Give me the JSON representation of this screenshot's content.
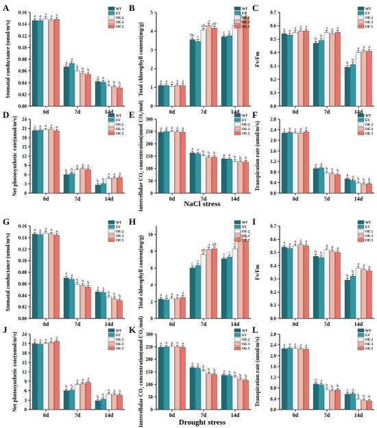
{
  "figure": {
    "section_labels": [
      "NaCl stress",
      "Drought stress"
    ],
    "colors": {
      "WT": "#1a6a78",
      "EV": "#2a9aa8",
      "OE-2": "#f4f4f4",
      "OE-3": "#f2b7a8",
      "OE-5": "#ee7468"
    }
  },
  "legend": [
    "WT",
    "EV",
    "OE-2",
    "OE-3",
    "OE-5"
  ],
  "chart_data": [
    {
      "panel": "A",
      "type": "bar",
      "ylabel": "Stomatal conductance (umol/m²s)",
      "categories": [
        "0d",
        "7d",
        "14d"
      ],
      "ylim": [
        0,
        0.16
      ],
      "yticks": [
        "0.00",
        "0.02",
        "0.04",
        "0.06",
        "0.08",
        "0.10",
        "0.12",
        "0.14",
        "0.16"
      ],
      "series": [
        {
          "name": "WT",
          "values": [
            0.146,
            0.067,
            0.042
          ]
        },
        {
          "name": "EV",
          "values": [
            0.146,
            0.073,
            0.041
          ]
        },
        {
          "name": "OE-2",
          "values": [
            0.149,
            0.06,
            0.034
          ]
        },
        {
          "name": "OE-3",
          "values": [
            0.146,
            0.056,
            0.033
          ]
        },
        {
          "name": "OE-5",
          "values": [
            0.148,
            0.054,
            0.031
          ]
        }
      ],
      "letters": [
        [
          "a",
          "a",
          "a",
          "a",
          "a"
        ],
        [
          "a",
          "a",
          "b",
          "b",
          "b"
        ],
        [
          "a",
          "a",
          "b",
          "b",
          "b"
        ]
      ]
    },
    {
      "panel": "B",
      "type": "bar",
      "ylabel": "Total chlorophyll content(mg/g)",
      "categories": [
        "0d",
        "7d",
        "14d"
      ],
      "ylim": [
        0,
        5
      ],
      "yticks": [
        "0",
        "1",
        "2",
        "3",
        "4",
        "5"
      ],
      "series": [
        {
          "name": "WT",
          "values": [
            1.1,
            3.55,
            3.7
          ]
        },
        {
          "name": "EV",
          "values": [
            1.1,
            3.45,
            3.75
          ]
        },
        {
          "name": "OE-2",
          "values": [
            1.05,
            4.05,
            4.3
          ]
        },
        {
          "name": "OE-3",
          "values": [
            1.12,
            4.3,
            4.55
          ]
        },
        {
          "name": "OE-5",
          "values": [
            1.08,
            4.15,
            4.75
          ]
        }
      ],
      "letters": [
        [
          "a",
          "a",
          "a",
          "a",
          "a"
        ],
        [
          "bc",
          "c",
          "ab",
          "a",
          "ab"
        ],
        [
          "c",
          "c",
          "b",
          "ab",
          "a"
        ]
      ]
    },
    {
      "panel": "C",
      "type": "bar",
      "ylabel": "Fv/Fm",
      "categories": [
        "0d",
        "7d",
        "14d"
      ],
      "ylim": [
        0,
        0.7
      ],
      "yticks": [
        "0.0",
        "0.1",
        "0.2",
        "0.3",
        "0.4",
        "0.5",
        "0.6",
        "0.7"
      ],
      "series": [
        {
          "name": "WT",
          "values": [
            0.54,
            0.47,
            0.29
          ]
        },
        {
          "name": "EV",
          "values": [
            0.53,
            0.49,
            0.31
          ]
        },
        {
          "name": "OE-2",
          "values": [
            0.55,
            0.55,
            0.4
          ]
        },
        {
          "name": "OE-3",
          "values": [
            0.56,
            0.54,
            0.41
          ]
        },
        {
          "name": "OE-5",
          "values": [
            0.56,
            0.55,
            0.41
          ]
        }
      ],
      "letters": [
        [
          "a",
          "a",
          "a",
          "a",
          "a"
        ],
        [
          "b",
          "b",
          "a",
          "a",
          "a"
        ],
        [
          "b",
          "b",
          "a",
          "a",
          "a"
        ]
      ]
    },
    {
      "panel": "D",
      "type": "bar",
      "ylabel": "Net photosynthetic rate(umol/m²s)",
      "categories": [
        "0d",
        "7d",
        "14d"
      ],
      "ylim": [
        0,
        24
      ],
      "yticks": [
        "0",
        "3",
        "6",
        "9",
        "12",
        "15",
        "18",
        "21",
        "24"
      ],
      "series": [
        {
          "name": "WT",
          "values": [
            20.3,
            6.0,
            2.6
          ]
        },
        {
          "name": "EV",
          "values": [
            20.4,
            6.3,
            3.1
          ]
        },
        {
          "name": "OE-2",
          "values": [
            20.6,
            7.6,
            4.8
          ]
        },
        {
          "name": "OE-3",
          "values": [
            20.7,
            8.0,
            4.9
          ]
        },
        {
          "name": "OE-5",
          "values": [
            20.2,
            7.6,
            5.1
          ]
        }
      ],
      "letters": [
        [
          "a",
          "a",
          "a",
          "a",
          "a"
        ],
        [
          "b",
          "b",
          "a",
          "a",
          "a"
        ],
        [
          "b",
          "b",
          "a",
          "a",
          "a"
        ]
      ]
    },
    {
      "panel": "E",
      "type": "bar",
      "ylabel": "Intercellular CO₂ concentration(umol CO₂/mol)",
      "categories": [
        "0d",
        "7d",
        "14d"
      ],
      "ylim": [
        0,
        300
      ],
      "yticks": [
        "0",
        "50",
        "100",
        "150",
        "200",
        "250",
        "300"
      ],
      "series": [
        {
          "name": "WT",
          "values": [
            247,
            163,
            139
          ]
        },
        {
          "name": "EV",
          "values": [
            250,
            160,
            138
          ]
        },
        {
          "name": "OE-2",
          "values": [
            249,
            151,
            130
          ]
        },
        {
          "name": "OE-3",
          "values": [
            248,
            145,
            128
          ]
        },
        {
          "name": "OE-5",
          "values": [
            247,
            145,
            126
          ]
        }
      ],
      "letters": [
        [
          "a",
          "a",
          "a",
          "a",
          "a"
        ],
        [
          "a",
          "a",
          "b",
          "b",
          "b"
        ],
        [
          "a",
          "a",
          "b",
          "b",
          "b"
        ]
      ]
    },
    {
      "panel": "F",
      "type": "bar",
      "ylabel": "Transpiration rate (umol/m²s)",
      "categories": [
        "0d",
        "7d",
        "14d"
      ],
      "ylim": [
        0,
        2.8
      ],
      "yticks": [
        "0.0",
        "0.4",
        "0.8",
        "1.2",
        "1.6",
        "2.0",
        "2.4",
        "2.8"
      ],
      "series": [
        {
          "name": "WT",
          "values": [
            2.27,
            0.93,
            0.54
          ]
        },
        {
          "name": "EV",
          "values": [
            2.3,
            0.96,
            0.48
          ]
        },
        {
          "name": "OE-2",
          "values": [
            2.27,
            0.77,
            0.38
          ]
        },
        {
          "name": "OE-3",
          "values": [
            2.28,
            0.73,
            0.34
          ]
        },
        {
          "name": "OE-5",
          "values": [
            2.32,
            0.69,
            0.36
          ]
        }
      ],
      "letters": [
        [
          "a",
          "a",
          "a",
          "a",
          "a"
        ],
        [
          "a",
          "a",
          "b",
          "b",
          "b"
        ],
        [
          "a",
          "a",
          "b",
          "b",
          "b"
        ]
      ]
    },
    {
      "panel": "G",
      "type": "bar",
      "ylabel": "Stomatal conductance (umol/m²s)",
      "categories": [
        "0d",
        "7d",
        "14d"
      ],
      "ylim": [
        0,
        0.16
      ],
      "yticks": [
        "0.00",
        "0.02",
        "0.04",
        "0.06",
        "0.08",
        "0.10",
        "0.12",
        "0.14",
        "0.16"
      ],
      "series": [
        {
          "name": "WT",
          "values": [
            0.146,
            0.07,
            0.046
          ]
        },
        {
          "name": "EV",
          "values": [
            0.145,
            0.068,
            0.045
          ]
        },
        {
          "name": "OE-2",
          "values": [
            0.148,
            0.059,
            0.037
          ]
        },
        {
          "name": "OE-3",
          "values": [
            0.146,
            0.057,
            0.034
          ]
        },
        {
          "name": "OE-5",
          "values": [
            0.144,
            0.054,
            0.031
          ]
        }
      ],
      "letters": [
        [
          "a",
          "a",
          "a",
          "a",
          "a"
        ],
        [
          "a",
          "a",
          "b",
          "b",
          "b"
        ],
        [
          "a",
          "a",
          "b",
          "b",
          "b"
        ]
      ]
    },
    {
      "panel": "H",
      "type": "bar",
      "ylabel": "Total chlorophyll content(mg/g)",
      "categories": [
        "0d",
        "7d",
        "14d"
      ],
      "ylim": [
        0,
        11
      ],
      "yticks": [
        "0",
        "2",
        "4",
        "6",
        "8",
        "10"
      ],
      "series": [
        {
          "name": "WT",
          "values": [
            2.3,
            6.0,
            7.1
          ]
        },
        {
          "name": "EV",
          "values": [
            2.2,
            6.3,
            7.3
          ]
        },
        {
          "name": "OE-2",
          "values": [
            2.4,
            7.6,
            8.3
          ]
        },
        {
          "name": "OE-3",
          "values": [
            2.3,
            8.2,
            9.8
          ]
        },
        {
          "name": "OE-5",
          "values": [
            2.5,
            8.3,
            9.2
          ]
        }
      ],
      "letters": [
        [
          "a",
          "a",
          "a",
          "a",
          "a"
        ],
        [
          "c",
          "c",
          "ab",
          "a",
          "ab"
        ],
        [
          "c",
          "c",
          "b",
          "a",
          "a"
        ]
      ]
    },
    {
      "panel": "I",
      "type": "bar",
      "ylabel": "Fv/Fm",
      "categories": [
        "0d",
        "7d",
        "14d"
      ],
      "ylim": [
        0,
        0.7
      ],
      "yticks": [
        "0.0",
        "0.1",
        "0.2",
        "0.3",
        "0.4",
        "0.5",
        "0.6",
        "0.7"
      ],
      "series": [
        {
          "name": "WT",
          "values": [
            0.54,
            0.47,
            0.29
          ]
        },
        {
          "name": "EV",
          "values": [
            0.53,
            0.46,
            0.32
          ]
        },
        {
          "name": "OE-2",
          "values": [
            0.55,
            0.52,
            0.38
          ]
        },
        {
          "name": "OE-3",
          "values": [
            0.56,
            0.51,
            0.37
          ]
        },
        {
          "name": "OE-5",
          "values": [
            0.55,
            0.5,
            0.36
          ]
        }
      ],
      "letters": [
        [
          "a",
          "a",
          "a",
          "a",
          "a"
        ],
        [
          "b",
          "b",
          "a",
          "a",
          "a"
        ],
        [
          "b",
          "b",
          "a",
          "a",
          "a"
        ]
      ]
    },
    {
      "panel": "J",
      "type": "bar",
      "ylabel": "Net photosynthetic rate(umol/m²s)",
      "categories": [
        "0d",
        "7d",
        "14d"
      ],
      "ylim": [
        0,
        24
      ],
      "yticks": [
        "0",
        "3",
        "6",
        "9",
        "12",
        "15",
        "18",
        "21",
        "24"
      ],
      "series": [
        {
          "name": "WT",
          "values": [
            21.0,
            6.0,
            2.8
          ]
        },
        {
          "name": "EV",
          "values": [
            20.8,
            6.2,
            3.3
          ]
        },
        {
          "name": "OE-2",
          "values": [
            21.0,
            7.9,
            4.9
          ]
        },
        {
          "name": "OE-3",
          "values": [
            21.3,
            8.2,
            4.8
          ]
        },
        {
          "name": "OE-5",
          "values": [
            21.7,
            8.6,
            4.6
          ]
        }
      ],
      "letters": [
        [
          "a",
          "a",
          "a",
          "a",
          "a"
        ],
        [
          "b",
          "b",
          "a",
          "a",
          "a"
        ],
        [
          "b",
          "b",
          "a",
          "a",
          "a"
        ]
      ]
    },
    {
      "panel": "K",
      "type": "bar",
      "ylabel": "Intercellular CO₂ concentration(umol CO₂/mol)",
      "categories": [
        "0d",
        "7d",
        "14d"
      ],
      "ylim": [
        0,
        300
      ],
      "yticks": [
        "0",
        "50",
        "100",
        "150",
        "200",
        "250",
        "300"
      ],
      "series": [
        {
          "name": "WT",
          "values": [
            248,
            167,
            137
          ]
        },
        {
          "name": "EV",
          "values": [
            250,
            165,
            135
          ]
        },
        {
          "name": "OE-2",
          "values": [
            251,
            154,
            129
          ]
        },
        {
          "name": "OE-3",
          "values": [
            250,
            143,
            120
          ]
        },
        {
          "name": "OE-5",
          "values": [
            248,
            140,
            117
          ]
        }
      ],
      "letters": [
        [
          "a",
          "a",
          "a",
          "a",
          "a"
        ],
        [
          "a",
          "a",
          "b",
          "b",
          "b"
        ],
        [
          "a",
          "a",
          "b",
          "b",
          "b"
        ]
      ]
    },
    {
      "panel": "L",
      "type": "bar",
      "ylabel": "Transpiration rate (umol/m²s)",
      "categories": [
        "0d",
        "7d",
        "14d"
      ],
      "ylim": [
        0,
        2.8
      ],
      "yticks": [
        "0.0",
        "0.4",
        "0.8",
        "1.2",
        "1.6",
        "2.0",
        "2.4",
        "2.8"
      ],
      "series": [
        {
          "name": "WT",
          "values": [
            2.26,
            0.95,
            0.57
          ]
        },
        {
          "name": "EV",
          "values": [
            2.28,
            0.92,
            0.59
          ]
        },
        {
          "name": "OE-2",
          "values": [
            2.27,
            0.74,
            0.38
          ]
        },
        {
          "name": "OE-3",
          "values": [
            2.25,
            0.7,
            0.34
          ]
        },
        {
          "name": "OE-5",
          "values": [
            2.24,
            0.73,
            0.32
          ]
        }
      ],
      "letters": [
        [
          "a",
          "a",
          "a",
          "a",
          "a"
        ],
        [
          "a",
          "a",
          "b",
          "b",
          "b"
        ],
        [
          "a",
          "a",
          "b",
          "b",
          "b"
        ]
      ]
    }
  ]
}
